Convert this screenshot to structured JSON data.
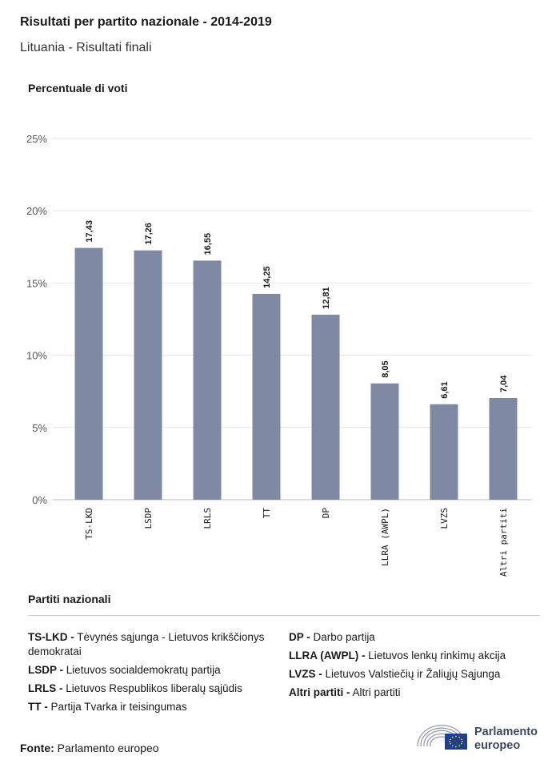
{
  "header": {
    "title": "Risultati per partito nazionale - 2014-2019",
    "subtitle": "Lituania - Risultati finali"
  },
  "colors": {
    "bar": "#7f89a3",
    "grid": "#e6e6e6",
    "axis": "#c8c8d8",
    "text": "#1a1a1a"
  },
  "chart_data": {
    "type": "bar",
    "ylabel": "Percentuale di voti",
    "ylim": [
      0,
      25
    ],
    "yticks": [
      "0%",
      "5%",
      "10%",
      "15%",
      "20%",
      "25%"
    ],
    "ytick_values": [
      0,
      5,
      10,
      15,
      20,
      25
    ],
    "grid": true,
    "categories": [
      "TS-LKD",
      "LSDP",
      "LRLS",
      "TT",
      "DP",
      "LLRA (AWPL)",
      "LVZS",
      "Altri partiti"
    ],
    "values": [
      17.43,
      17.26,
      16.55,
      14.25,
      12.81,
      8.05,
      6.61,
      7.04
    ],
    "value_labels": [
      "17,43",
      "17,26",
      "16,55",
      "14,25",
      "12,81",
      "8,05",
      "6,61",
      "7,04"
    ]
  },
  "legend": {
    "title": "Partiti nazionali",
    "left": [
      {
        "abbr": "TS-LKD -",
        "name": "Tėvynės sąjunga - Lietuvos krikščionys demokratai"
      },
      {
        "abbr": "LSDP -",
        "name": "Lietuvos socialdemokratų partija"
      },
      {
        "abbr": "LRLS -",
        "name": "Lietuvos Respublikos liberalų sąjūdis"
      },
      {
        "abbr": "TT -",
        "name": "Partija Tvarka ir teisingumas"
      }
    ],
    "right": [
      {
        "abbr": "DP -",
        "name": "Darbo partija"
      },
      {
        "abbr": "LLRA (AWPL) -",
        "name": "Lietuvos lenkų rinkimų akcija"
      },
      {
        "abbr": "LVZS -",
        "name": "Lietuvos Valstiečių ir Žaliųjų Sąjunga"
      },
      {
        "abbr": "Altri partiti -",
        "name": "Altri partiti"
      }
    ]
  },
  "footer": {
    "source_label": "Fonte:",
    "source_value": "Parlamento europeo",
    "brand_line1": "Parlamento",
    "brand_line2": "europeo",
    "brand_icon": "european-parliament-logo-icon"
  }
}
